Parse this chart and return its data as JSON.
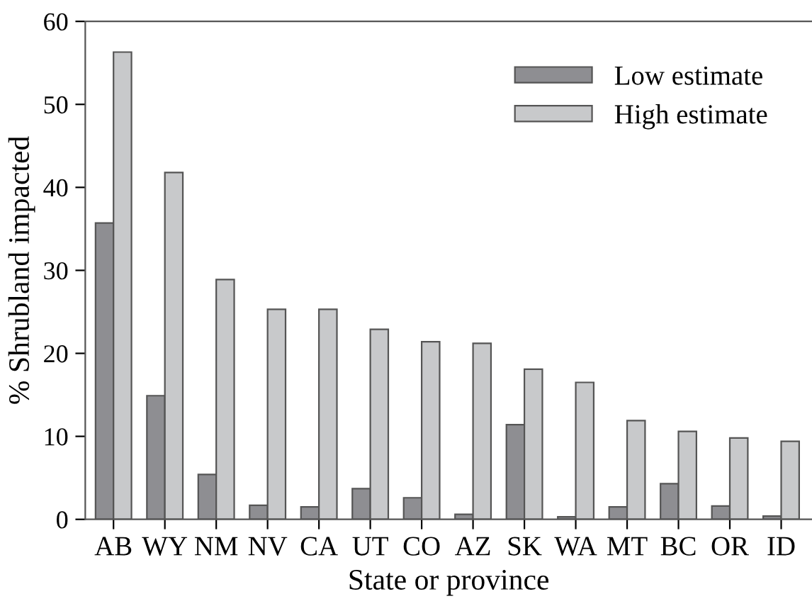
{
  "chart_data": {
    "type": "bar",
    "xlabel": "State or province",
    "ylabel": "% Shrubland impacted",
    "categories": [
      "AB",
      "WY",
      "NM",
      "NV",
      "CA",
      "UT",
      "CO",
      "AZ",
      "SK",
      "WA",
      "MT",
      "BC",
      "OR",
      "ID"
    ],
    "series": [
      {
        "name": "Low estimate",
        "color": "#8e8e92",
        "values": [
          35.7,
          14.9,
          5.4,
          1.7,
          1.5,
          3.7,
          2.6,
          0.6,
          11.4,
          0.3,
          1.5,
          4.3,
          1.6,
          0.4
        ]
      },
      {
        "name": "High estimate",
        "color": "#c8c9cb",
        "values": [
          56.3,
          41.8,
          28.9,
          25.3,
          25.3,
          22.9,
          21.4,
          21.2,
          18.1,
          16.5,
          11.9,
          10.6,
          9.8,
          9.4
        ]
      }
    ],
    "ylim": [
      0,
      60
    ],
    "yticks": [
      0,
      10,
      20,
      30,
      40,
      50,
      60
    ],
    "grid": false,
    "legend": "top right"
  }
}
